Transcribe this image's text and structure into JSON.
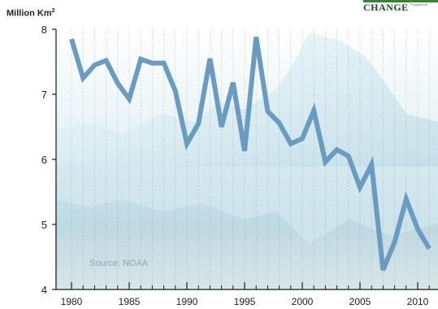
{
  "brand": {
    "name": "CHANGE",
    "tagline": "Programme"
  },
  "unit": {
    "text": "Million Km",
    "sup": "2"
  },
  "source": "Source: NOAA",
  "colors": {
    "line": "#6a9cc2",
    "axis": "#1a1a1a",
    "grid": "#7b8f96",
    "brand": "#1f4a23"
  },
  "chart_data": {
    "type": "line",
    "title": "",
    "xlabel": "",
    "ylabel": "Million Km2",
    "xlim": [
      1979,
      2012
    ],
    "ylim": [
      4,
      8
    ],
    "xticks": [
      1980,
      1985,
      1990,
      1995,
      2000,
      2005,
      2010
    ],
    "yticks": [
      4,
      5,
      6,
      7,
      8
    ],
    "grid": "vertical dotted at every year",
    "background": "photo of icebergs reflected in water",
    "series": [
      {
        "x": [
          1980,
          1981,
          1982,
          1983,
          1984,
          1985,
          1986,
          1987,
          1988,
          1989,
          1990,
          1991,
          1992,
          1993,
          1994,
          1995,
          1996,
          1997,
          1998,
          1999,
          2000,
          2001,
          2002,
          2003,
          2004,
          2005,
          2006,
          2007,
          2008,
          2009,
          2010,
          2011
        ],
        "values": [
          7.85,
          7.25,
          7.45,
          7.52,
          7.17,
          6.93,
          7.54,
          7.48,
          7.48,
          7.05,
          6.24,
          6.55,
          7.55,
          6.5,
          7.18,
          6.13,
          7.88,
          6.74,
          6.56,
          6.24,
          6.32,
          6.75,
          5.96,
          6.15,
          6.05,
          5.57,
          5.92,
          4.3,
          4.73,
          5.39,
          4.93,
          4.63
        ]
      }
    ]
  }
}
